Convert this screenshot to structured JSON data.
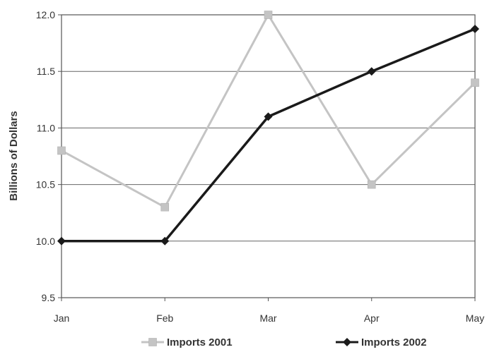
{
  "chart_data": {
    "type": "line",
    "title": "",
    "xlabel": "",
    "ylabel": "Billions of Dollars",
    "categories": [
      "Jan",
      "Feb",
      "Mar",
      "Apr",
      "May"
    ],
    "ylim": [
      9.5,
      12.0
    ],
    "yticks": [
      9.5,
      10.0,
      10.5,
      11.0,
      11.5,
      12.0
    ],
    "ytick_labels": [
      "9.5",
      "10.0",
      "10.5",
      "11.0",
      "11.5",
      "12.0"
    ],
    "grid": true,
    "legend_position": "bottom",
    "series": [
      {
        "name": "Imports 2001",
        "values": [
          10.8,
          10.3,
          12.0,
          10.5,
          11.4
        ],
        "color": "#c4c4c4",
        "marker": "square"
      },
      {
        "name": "Imports 2002",
        "values": [
          10.0,
          10.0,
          11.1,
          11.5,
          11.875
        ],
        "color": "#1a1a1a",
        "marker": "diamond"
      }
    ]
  }
}
